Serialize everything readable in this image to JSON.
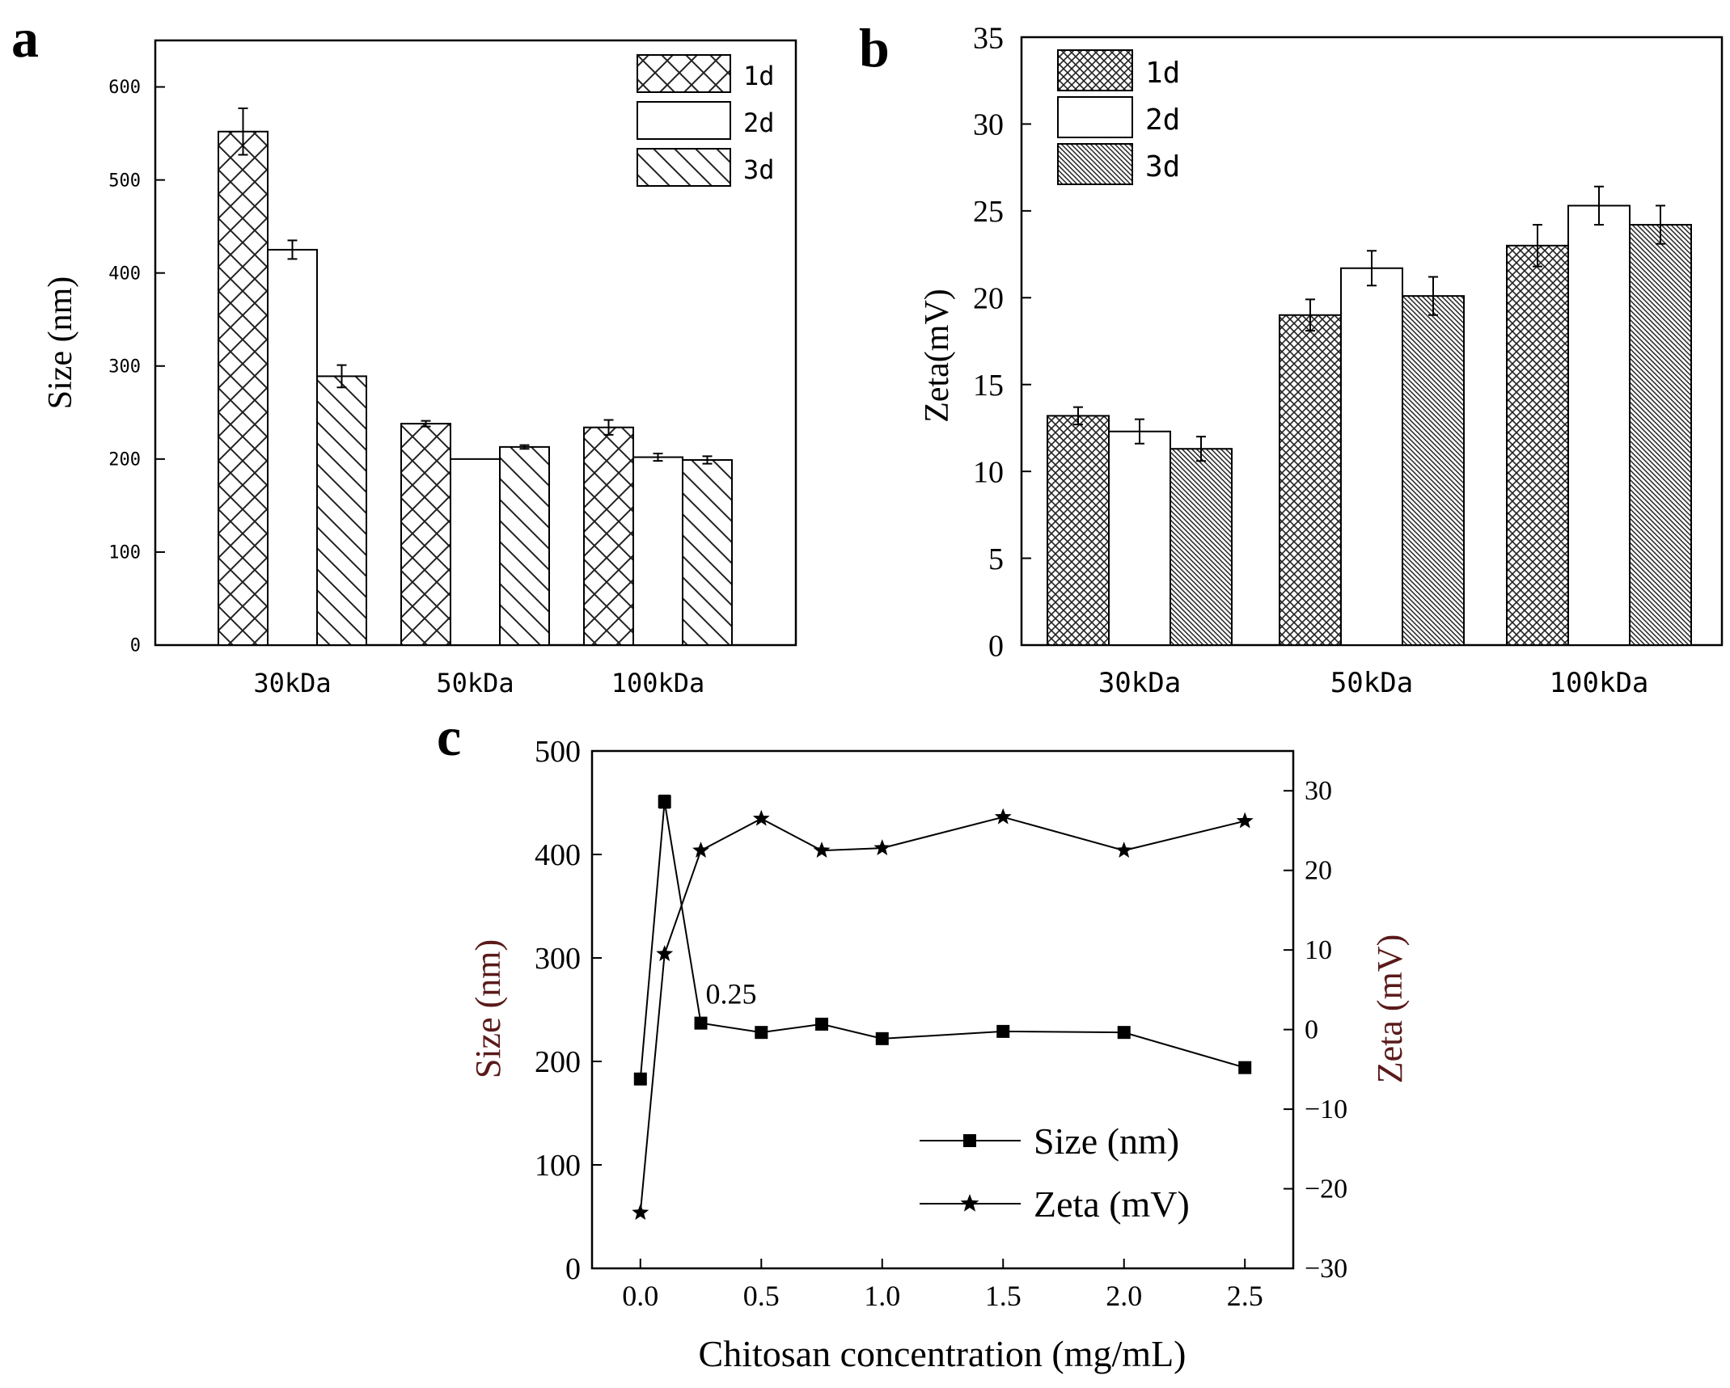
{
  "figure": {
    "panels": [
      "a",
      "b",
      "c"
    ]
  },
  "chart_data": [
    {
      "id": "a",
      "type": "bar",
      "panel_label": "a",
      "title": "",
      "xlabel": "",
      "ylabel": "Size (nm)",
      "ylim": [
        0,
        650
      ],
      "yticks": [
        0,
        100,
        200,
        300,
        400,
        500,
        600
      ],
      "categories": [
        "30kDa",
        "50kDa",
        "100kDa"
      ],
      "series": [
        {
          "name": "1d",
          "pattern": "crosshatch",
          "values": [
            552,
            238,
            234
          ],
          "errors": [
            25,
            3,
            8
          ]
        },
        {
          "name": "2d",
          "pattern": "none",
          "values": [
            425,
            200,
            202
          ],
          "errors": [
            10,
            0,
            4
          ]
        },
        {
          "name": "3d",
          "pattern": "backslash",
          "values": [
            289,
            213,
            199
          ],
          "errors": [
            12,
            2,
            4
          ]
        }
      ],
      "legend_position": "top-right"
    },
    {
      "id": "b",
      "type": "bar",
      "panel_label": "b",
      "title": "",
      "xlabel": "",
      "ylabel": "Zeta(mV)",
      "ylim": [
        0,
        35
      ],
      "yticks": [
        0,
        5,
        10,
        15,
        20,
        25,
        30,
        35
      ],
      "categories": [
        "30kDa",
        "50kDa",
        "100kDa"
      ],
      "series": [
        {
          "name": "1d",
          "pattern": "dense-crosshatch",
          "values": [
            13.2,
            19.0,
            23.0
          ],
          "errors": [
            0.5,
            0.9,
            1.2
          ]
        },
        {
          "name": "2d",
          "pattern": "none",
          "values": [
            12.3,
            21.7,
            25.3
          ],
          "errors": [
            0.7,
            1.0,
            1.1
          ]
        },
        {
          "name": "3d",
          "pattern": "dense-diagonal",
          "values": [
            11.3,
            20.1,
            24.2
          ],
          "errors": [
            0.7,
            1.1,
            1.1
          ]
        }
      ],
      "legend_position": "top-left"
    },
    {
      "id": "c",
      "type": "line",
      "panel_label": "c",
      "title": "",
      "xlabel": "Chitosan concentration (mg/mL)",
      "ylabel": "Size (nm)",
      "y2label": "Zeta (mV)",
      "xlim": [
        -0.2,
        2.7
      ],
      "xticks": [
        "0.0",
        "0.5",
        "1.0",
        "1.5",
        "2.0",
        "2.5"
      ],
      "ylim": [
        0,
        500
      ],
      "yticks": [
        0,
        100,
        200,
        300,
        400,
        500
      ],
      "y2lim": [
        -30,
        35
      ],
      "y2ticks": [
        -30,
        -20,
        -10,
        0,
        10,
        20,
        30
      ],
      "series": [
        {
          "name": "Size (nm)",
          "axis": "left",
          "marker": "square",
          "x": [
            0,
            0.1,
            0.25,
            0.5,
            0.75,
            1.0,
            1.5,
            2.0,
            2.5
          ],
          "values": [
            183,
            451,
            237,
            228,
            236,
            222,
            229,
            228,
            194
          ]
        },
        {
          "name": "Zeta (mV)",
          "axis": "right",
          "marker": "star",
          "x": [
            0,
            0.1,
            0.25,
            0.5,
            0.75,
            1.0,
            1.5,
            2.0,
            2.5
          ],
          "values": [
            -23,
            9.5,
            22.5,
            26.5,
            22.5,
            22.8,
            26.7,
            22.5,
            26.2
          ]
        }
      ],
      "annotations": [
        {
          "text": "0.25",
          "x": 0.25,
          "y": 237,
          "axis": "left"
        }
      ],
      "legend_position": "bottom-right"
    }
  ]
}
